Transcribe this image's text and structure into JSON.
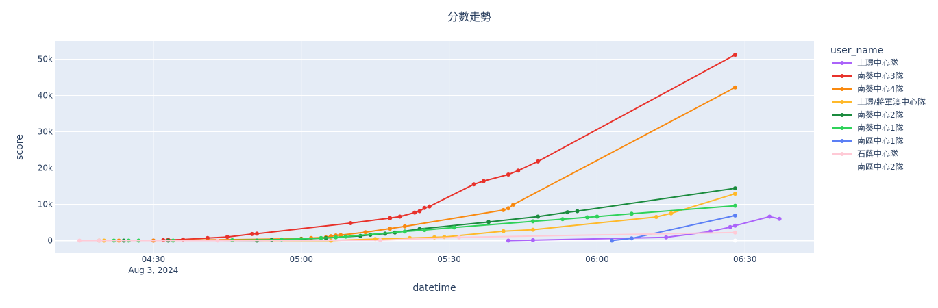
{
  "chart_data": {
    "type": "line",
    "title": "分數走勢",
    "xlabel": "datetime",
    "ylabel": "score",
    "x_axis": {
      "range": [
        "2024-08-03 04:10",
        "2024-08-03 06:44"
      ],
      "ticks": [
        {
          "value": "2024-08-03 04:30",
          "label": "04:30",
          "sublabel": "Aug 3, 2024"
        },
        {
          "value": "2024-08-03 05:00",
          "label": "05:00",
          "sublabel": ""
        },
        {
          "value": "2024-08-03 05:30",
          "label": "05:30",
          "sublabel": ""
        },
        {
          "value": "2024-08-03 06:00",
          "label": "06:00",
          "sublabel": ""
        },
        {
          "value": "2024-08-03 06:30",
          "label": "06:30",
          "sublabel": ""
        }
      ]
    },
    "y_axis": {
      "range": [
        -3500,
        55000
      ],
      "ticks": [
        {
          "value": 0,
          "label": "0"
        },
        {
          "value": 10000,
          "label": "10k"
        },
        {
          "value": 20000,
          "label": "20k"
        },
        {
          "value": 30000,
          "label": "30k"
        },
        {
          "value": 40000,
          "label": "40k"
        },
        {
          "value": 50000,
          "label": "50k"
        }
      ]
    },
    "grid": true,
    "legend": {
      "title": "user_name",
      "position": "right"
    },
    "series": [
      {
        "name": "上環中心隊",
        "color": "#ab63fa",
        "points": [
          [
            "2024-08-03 05:42",
            0
          ],
          [
            "2024-08-03 05:47",
            100
          ],
          [
            "2024-08-03 06:14",
            900
          ],
          [
            "2024-08-03 06:23",
            2500
          ],
          [
            "2024-08-03 06:27",
            3700
          ],
          [
            "2024-08-03 06:28",
            4100
          ],
          [
            "2024-08-03 06:35",
            6600
          ],
          [
            "2024-08-03 06:37",
            6000
          ]
        ]
      },
      {
        "name": "南葵中心3隊",
        "color": "#e8322b",
        "points": [
          [
            "2024-08-03 04:30",
            0
          ],
          [
            "2024-08-03 04:32",
            100
          ],
          [
            "2024-08-03 04:33",
            200
          ],
          [
            "2024-08-03 04:36",
            300
          ],
          [
            "2024-08-03 04:41",
            700
          ],
          [
            "2024-08-03 04:45",
            1000
          ],
          [
            "2024-08-03 04:50",
            1800
          ],
          [
            "2024-08-03 04:51",
            1900
          ],
          [
            "2024-08-03 05:10",
            4800
          ],
          [
            "2024-08-03 05:18",
            6200
          ],
          [
            "2024-08-03 05:20",
            6600
          ],
          [
            "2024-08-03 05:23",
            7700
          ],
          [
            "2024-08-03 05:24",
            8100
          ],
          [
            "2024-08-03 05:25",
            9000
          ],
          [
            "2024-08-03 05:26",
            9400
          ],
          [
            "2024-08-03 05:35",
            15500
          ],
          [
            "2024-08-03 05:37",
            16400
          ],
          [
            "2024-08-03 05:42",
            18200
          ],
          [
            "2024-08-03 05:44",
            19300
          ],
          [
            "2024-08-03 05:48",
            21800
          ],
          [
            "2024-08-03 06:28",
            51200
          ]
        ]
      },
      {
        "name": "南葵中心4隊",
        "color": "#f9890f",
        "points": [
          [
            "2024-08-03 04:19",
            0
          ],
          [
            "2024-08-03 04:23",
            0
          ],
          [
            "2024-08-03 04:30",
            0
          ],
          [
            "2024-08-03 05:00",
            500
          ],
          [
            "2024-08-03 05:02",
            700
          ],
          [
            "2024-08-03 05:05",
            900
          ],
          [
            "2024-08-03 05:06",
            1200
          ],
          [
            "2024-08-03 05:07",
            1400
          ],
          [
            "2024-08-03 05:08",
            1500
          ],
          [
            "2024-08-03 05:13",
            2300
          ],
          [
            "2024-08-03 05:18",
            3300
          ],
          [
            "2024-08-03 05:21",
            3900
          ],
          [
            "2024-08-03 05:41",
            8400
          ],
          [
            "2024-08-03 05:42",
            8900
          ],
          [
            "2024-08-03 05:43",
            9900
          ],
          [
            "2024-08-03 06:28",
            42200
          ]
        ]
      },
      {
        "name": "上環/將軍澳中心隊",
        "color": "#ffb92a",
        "points": [
          [
            "2024-08-03 04:20",
            0
          ],
          [
            "2024-08-03 05:06",
            0
          ],
          [
            "2024-08-03 05:15",
            400
          ],
          [
            "2024-08-03 05:22",
            700
          ],
          [
            "2024-08-03 05:27",
            900
          ],
          [
            "2024-08-03 05:29",
            1000
          ],
          [
            "2024-08-03 05:41",
            2600
          ],
          [
            "2024-08-03 05:47",
            3000
          ],
          [
            "2024-08-03 06:12",
            6500
          ],
          [
            "2024-08-03 06:15",
            7500
          ],
          [
            "2024-08-03 06:28",
            12900
          ]
        ]
      },
      {
        "name": "南葵中心2隊",
        "color": "#1b8b3e",
        "points": [
          [
            "2024-08-03 04:24",
            0
          ],
          [
            "2024-08-03 04:33",
            0
          ],
          [
            "2024-08-03 04:51",
            0
          ],
          [
            "2024-08-03 04:54",
            200
          ],
          [
            "2024-08-03 05:00",
            400
          ],
          [
            "2024-08-03 05:05",
            700
          ],
          [
            "2024-08-03 05:12",
            1300
          ],
          [
            "2024-08-03 05:14",
            1600
          ],
          [
            "2024-08-03 05:17",
            1900
          ],
          [
            "2024-08-03 05:19",
            2200
          ],
          [
            "2024-08-03 05:24",
            3200
          ],
          [
            "2024-08-03 05:38",
            5100
          ],
          [
            "2024-08-03 05:48",
            6600
          ],
          [
            "2024-08-03 05:54",
            7800
          ],
          [
            "2024-08-03 05:56",
            8100
          ],
          [
            "2024-08-03 06:28",
            14400
          ]
        ]
      },
      {
        "name": "南葵中心1隊",
        "color": "#2fd25a",
        "points": [
          [
            "2024-08-03 04:22",
            0
          ],
          [
            "2024-08-03 04:25",
            0
          ],
          [
            "2024-08-03 04:27",
            0
          ],
          [
            "2024-08-03 04:34",
            0
          ],
          [
            "2024-08-03 04:46",
            100
          ],
          [
            "2024-08-03 04:56",
            300
          ],
          [
            "2024-08-03 05:04",
            700
          ],
          [
            "2024-08-03 05:07",
            900
          ],
          [
            "2024-08-03 05:09",
            1100
          ],
          [
            "2024-08-03 05:21",
            2500
          ],
          [
            "2024-08-03 05:25",
            2900
          ],
          [
            "2024-08-03 05:31",
            3600
          ],
          [
            "2024-08-03 05:47",
            5300
          ],
          [
            "2024-08-03 05:53",
            5900
          ],
          [
            "2024-08-03 05:58",
            6400
          ],
          [
            "2024-08-03 06:00",
            6600
          ],
          [
            "2024-08-03 06:07",
            7400
          ],
          [
            "2024-08-03 06:28",
            9600
          ]
        ]
      },
      {
        "name": "南區中心1隊",
        "color": "#5b7ff5",
        "points": [
          [
            "2024-08-03 06:03",
            0
          ],
          [
            "2024-08-03 06:07",
            600
          ],
          [
            "2024-08-03 06:28",
            6900
          ]
        ]
      },
      {
        "name": "石蔭中心隊",
        "color": "#ffcad6",
        "points": [
          [
            "2024-08-03 04:15",
            0
          ],
          [
            "2024-08-03 04:19",
            0
          ],
          [
            "2024-08-03 04:43",
            0
          ],
          [
            "2024-08-03 05:16",
            100
          ],
          [
            "2024-08-03 05:32",
            900
          ],
          [
            "2024-08-03 06:28",
            2200
          ]
        ]
      },
      {
        "name": "南區中心2隊",
        "color": "#ffffff",
        "points": [
          [
            "2024-08-03 06:28",
            0
          ]
        ]
      }
    ]
  }
}
